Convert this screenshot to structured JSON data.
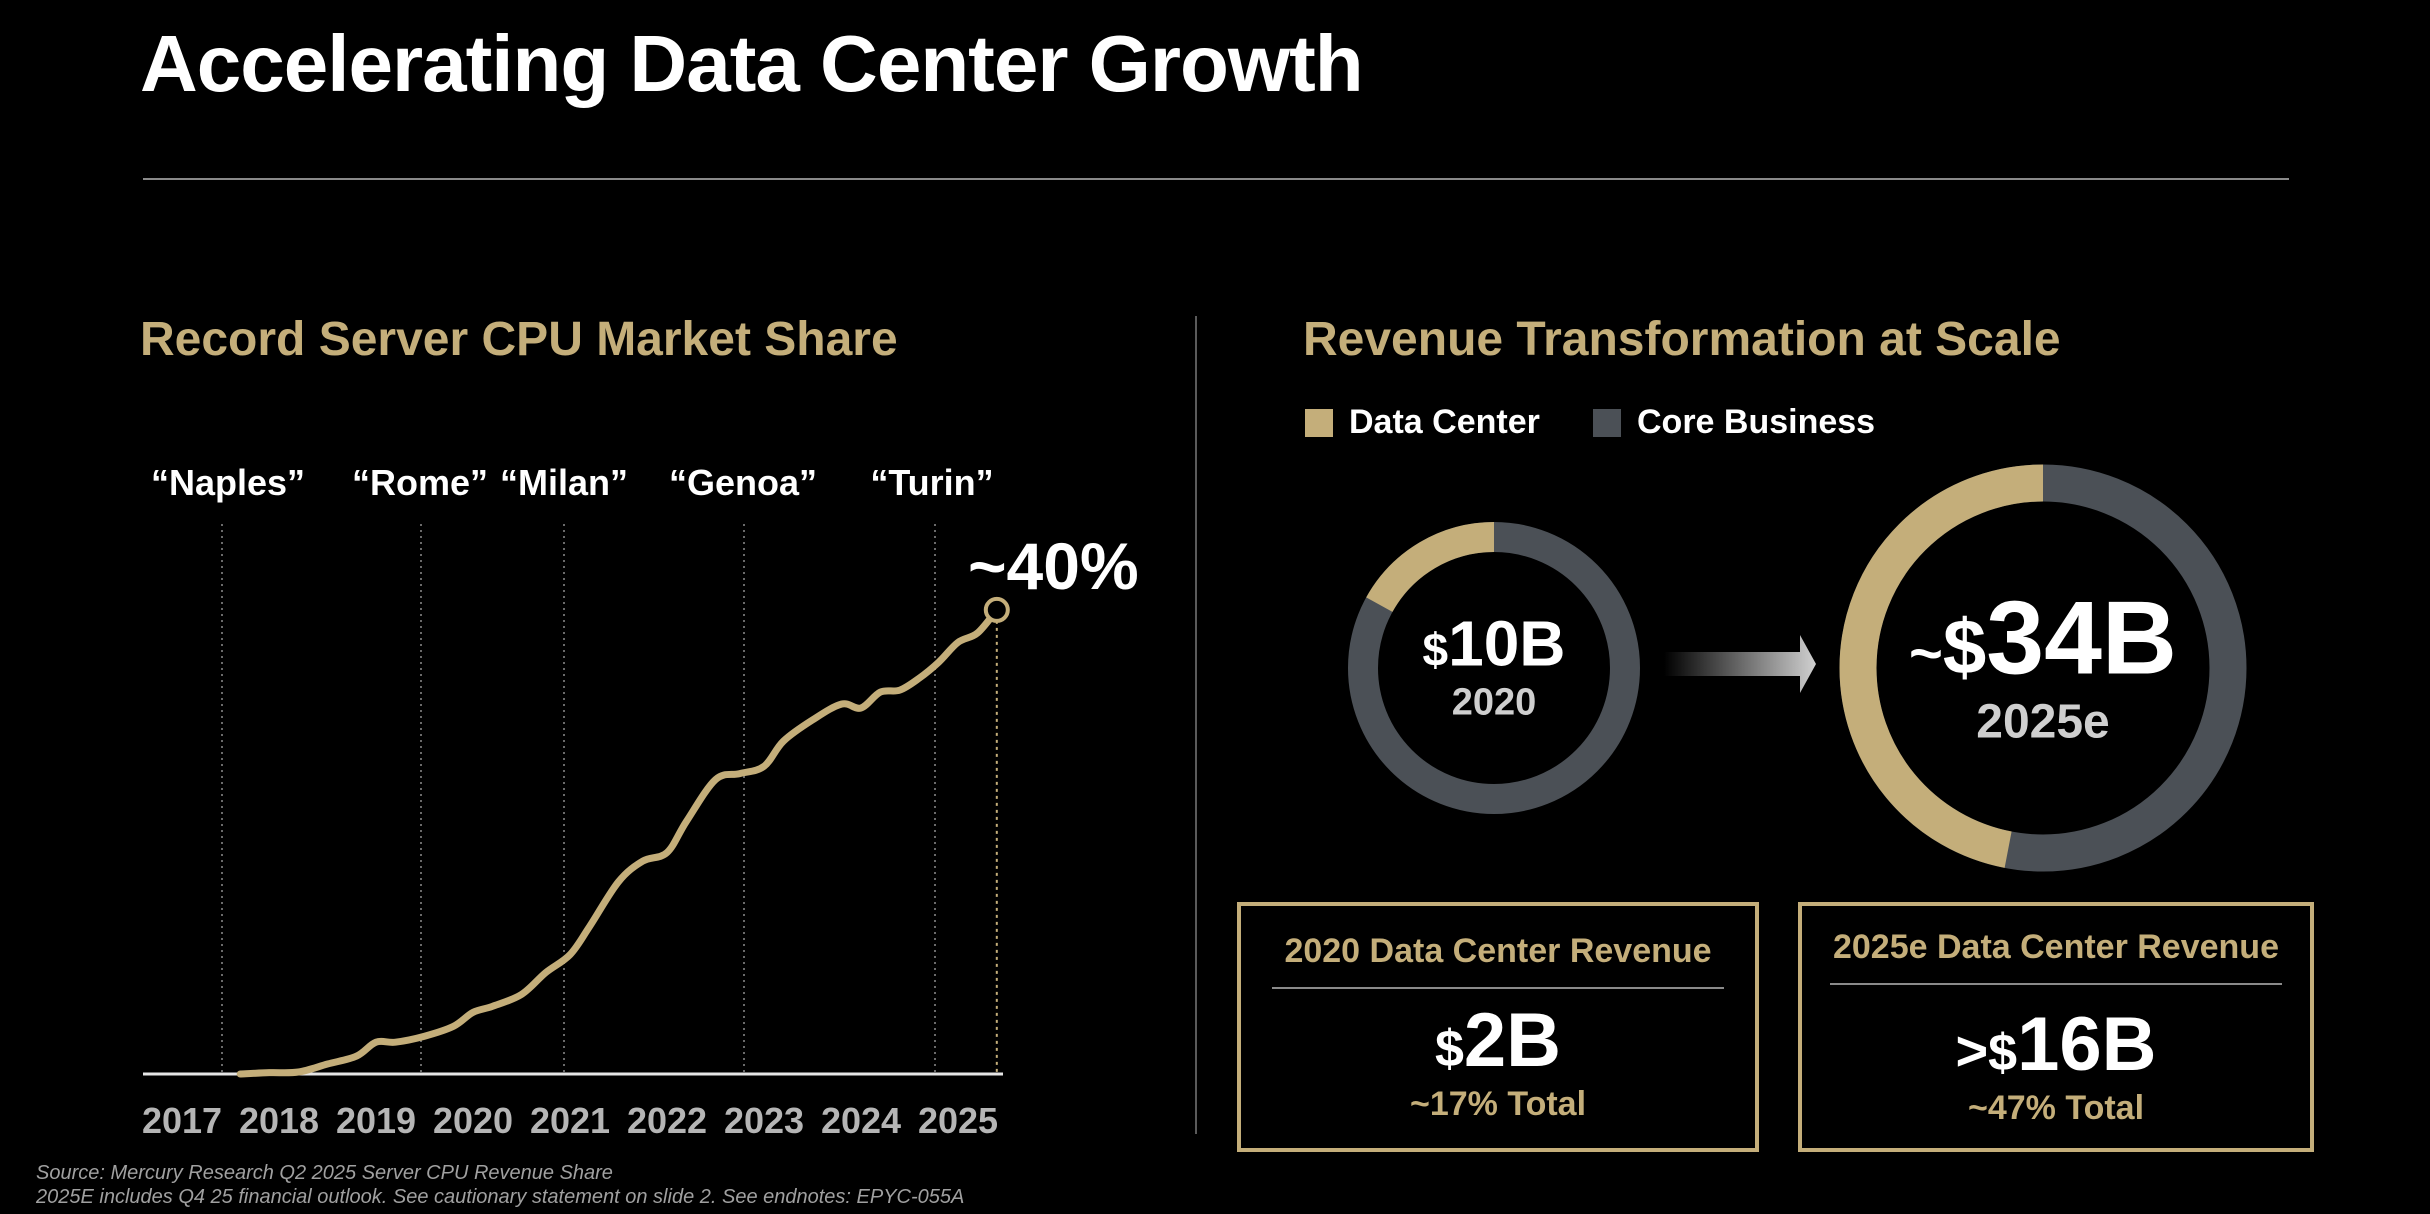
{
  "page": {
    "title": "Accelerating Data Center Growth",
    "footnotes": [
      "Source: Mercury Research Q2 2025 Server CPU Revenue Share",
      "2025E includes Q4 25 financial outlook. See cautionary statement on slide 2. See endnotes: EPYC-055A"
    ]
  },
  "colors": {
    "gold": "#c4ae7a",
    "slate": "#4b5056",
    "background": "#000000"
  },
  "chart_data": [
    {
      "type": "line",
      "title": "Record Server CPU Market Share",
      "categories": [
        "2017",
        "2018",
        "2019",
        "2020",
        "2021",
        "2022",
        "2023",
        "2024",
        "2025"
      ],
      "codenames": [
        "“Naples”",
        "“Rome”",
        "“Milan”",
        "“Genoa”",
        "“Turin”"
      ],
      "annotation": "~40%",
      "series": [
        {
          "x": [
            2017.6,
            2017.9,
            2018.2,
            2018.5,
            2018.8,
            2019.0,
            2019.2,
            2019.5,
            2019.8,
            2020.0,
            2020.2,
            2020.5,
            2020.75,
            2021.0,
            2021.2,
            2021.5,
            2021.75,
            2022.0,
            2022.2,
            2022.5,
            2022.75,
            2023.0,
            2023.2,
            2023.5,
            2023.8,
            2024.0,
            2024.2,
            2024.4,
            2024.6,
            2024.8,
            2025.0,
            2025.2,
            2025.4
          ],
          "values": [
            0.0,
            0.2,
            0.3,
            1.5,
            2.7,
            4.8,
            4.8,
            5.7,
            7.2,
            9.3,
            10.2,
            12.0,
            15.3,
            18.0,
            22.2,
            29.0,
            32.1,
            33.4,
            38.1,
            44.4,
            45.3,
            46.4,
            50.2,
            53.4,
            55.8,
            55.2,
            57.6,
            57.9,
            59.7,
            62.1,
            65.1,
            66.5,
            70.0
          ]
        }
      ],
      "ylim": [
        0,
        80
      ],
      "xlim": [
        2017,
        2025.5
      ],
      "grid": "vertical dotted lines at codename launches"
    },
    {
      "type": "pie",
      "title": "Revenue Transformation at Scale",
      "legend": [
        "Data Center",
        "Core Business"
      ],
      "donuts": [
        {
          "label": "2020",
          "total_display": "10B",
          "currency": "$",
          "prefix": "",
          "data_center_share": 0.17,
          "core_share": 0.83
        },
        {
          "label": "2025e",
          "total_display": "34B",
          "currency": "$",
          "prefix": "~",
          "data_center_share": 0.47,
          "core_share": 0.53
        }
      ]
    }
  ],
  "boxes": [
    {
      "title": "2020 Data Center Revenue",
      "prefix": "",
      "currency": "$",
      "value": "2B",
      "sub": "~17% Total"
    },
    {
      "title": "2025e Data Center Revenue",
      "prefix": ">",
      "currency": "$",
      "value": "16B",
      "sub": "~47% Total"
    }
  ]
}
